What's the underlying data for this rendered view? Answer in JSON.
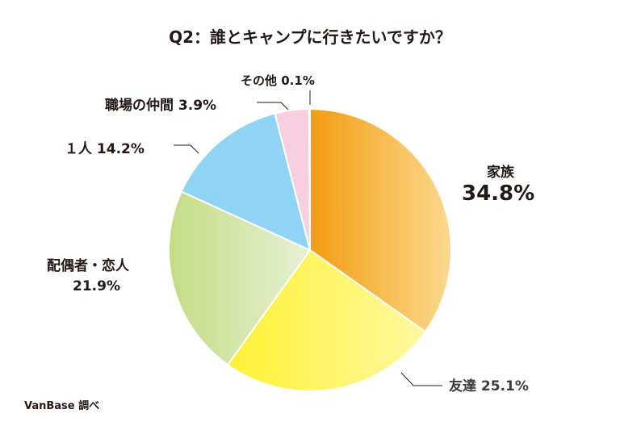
{
  "chart_data": {
    "type": "pie",
    "title": "Q2：誰とキャンプに行きたいですか？",
    "slices": [
      {
        "label": "家族",
        "value": 34.8,
        "value_text": "34.8%",
        "color": "#f39c12",
        "color2": "#fbd98e"
      },
      {
        "label": "友達",
        "value": 25.1,
        "value_text": "25.1%",
        "color": "#fff033",
        "color2": "#fff9a0"
      },
      {
        "label": "配偶者・恋人",
        "value": 21.9,
        "value_text": "21.9%",
        "color": "#c3dc82",
        "color2": "#e8f0d6"
      },
      {
        "label": "１人",
        "value": 14.2,
        "value_text": "14.2%",
        "color": "#8fd3f5",
        "color2": "#8fd3f5"
      },
      {
        "label": "職場の仲間",
        "value": 3.9,
        "value_text": "3.9%",
        "color": "#f8cfe0",
        "color2": "#f8cfe0"
      },
      {
        "label": "その他",
        "value": 0.1,
        "value_text": "0.1%",
        "color": "#b9b3e0",
        "color2": "#b9b3e0"
      }
    ],
    "start": "top",
    "direction": "clockwise"
  },
  "source": "VanBase 調べ"
}
